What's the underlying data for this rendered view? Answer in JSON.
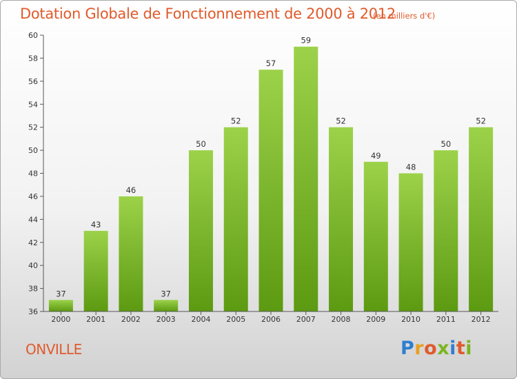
{
  "header": {
    "title": "Dotation Globale de Fonctionnement de 2000 à 2012",
    "subtitle": "(en milliers d'€)"
  },
  "footer": {
    "city": "ONVILLE",
    "logo": {
      "text": "Proxiti",
      "letter_colors": [
        "#2f7fcf",
        "#e8a020",
        "#e05a2b",
        "#7ab520",
        "#2f7fcf",
        "#e05a2b",
        "#7ab520"
      ]
    }
  },
  "colors": {
    "title": "#e05a2b",
    "bar_light": "#9cd24a",
    "bar_dark": "#5c9a12",
    "axis": "#555555",
    "grid": "#dddddd"
  },
  "chart_data": {
    "type": "bar",
    "categories": [
      "2000",
      "2001",
      "2002",
      "2003",
      "2004",
      "2005",
      "2006",
      "2007",
      "2008",
      "2009",
      "2010",
      "2011",
      "2012"
    ],
    "values": [
      37,
      43,
      46,
      37,
      50,
      52,
      57,
      59,
      52,
      49,
      48,
      50,
      52
    ],
    "ylim": [
      36,
      60
    ],
    "yticks": [
      36,
      38,
      40,
      42,
      44,
      46,
      48,
      50,
      52,
      54,
      56,
      58,
      60
    ],
    "grid": false,
    "data_labels": true
  }
}
